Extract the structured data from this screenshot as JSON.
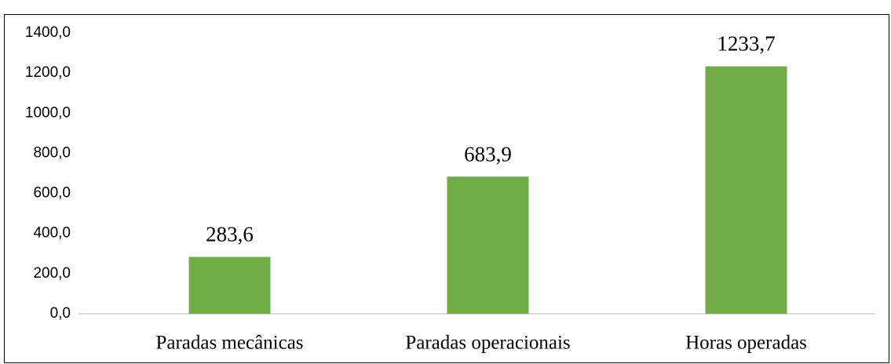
{
  "chart_data": {
    "type": "bar",
    "categories": [
      "Paradas mecânicas",
      "Paradas operacionais",
      "Horas operadas"
    ],
    "values": [
      283.6,
      683.9,
      1233.7
    ],
    "value_labels": [
      "283,6",
      "683,9",
      "1233,7"
    ],
    "color": "#70ad47",
    "ylim": [
      0,
      1400
    ],
    "yticks": [
      {
        "value": 0,
        "label": "0,0"
      },
      {
        "value": 200,
        "label": "200,0"
      },
      {
        "value": 400,
        "label": "400,0"
      },
      {
        "value": 600,
        "label": "600,0"
      },
      {
        "value": 800,
        "label": "800,0"
      },
      {
        "value": 1000,
        "label": "1000,0"
      },
      {
        "value": 1200,
        "label": "1200,0"
      },
      {
        "value": 1400,
        "label": "1400,0"
      }
    ],
    "grid": false
  }
}
